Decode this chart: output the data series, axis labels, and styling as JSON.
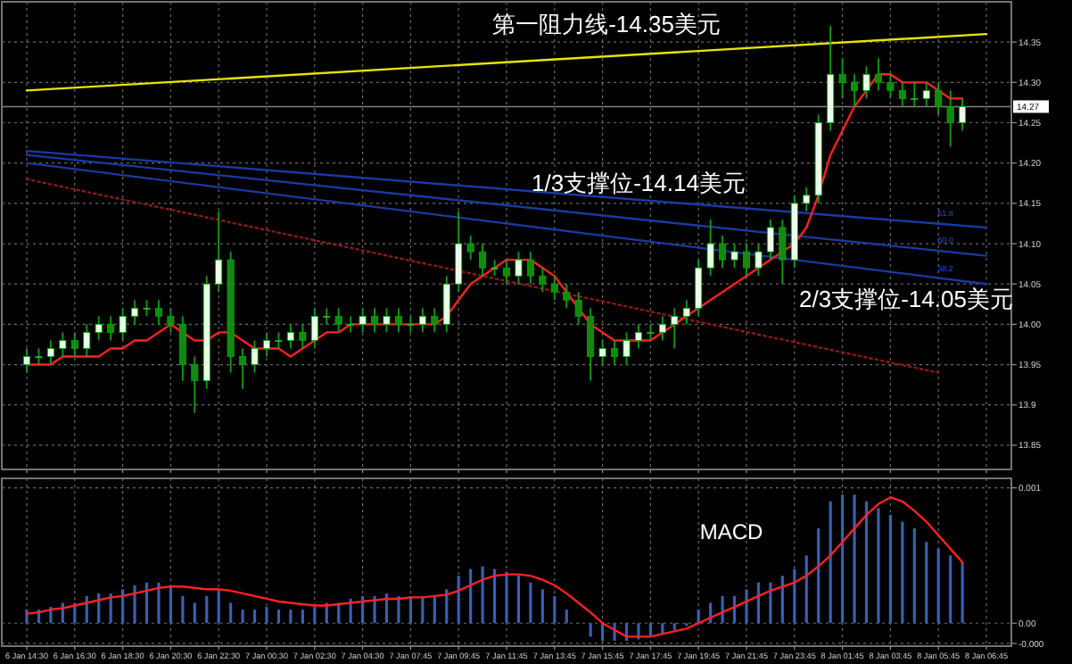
{
  "chart_data": [
    {
      "type": "candlestick",
      "tick_labels": "y",
      "grid": true,
      "ylim": [
        13.82,
        14.4
      ],
      "yticks": [
        13.85,
        13.9,
        13.95,
        {
          "value": 14.0,
          "label": "14.00"
        },
        14.05,
        {
          "value": 14.1,
          "label": "14.10"
        },
        14.15,
        {
          "value": 14.2,
          "label": "14.20"
        },
        14.25,
        {
          "value": 14.3,
          "label": "14.30"
        },
        14.35
      ],
      "categories": [
        "6 Jan 14:30",
        null,
        null,
        null,
        "6 Jan 16:30",
        null,
        null,
        null,
        "6 Jan 18:30",
        null,
        null,
        null,
        "6 Jan 20:30",
        null,
        null,
        null,
        "6 Jan 22:30",
        null,
        null,
        null,
        "7 Jan 00:30",
        null,
        null,
        null,
        "7 Jan 02:30",
        null,
        null,
        null,
        "7 Jan 04:30",
        null,
        null,
        null,
        "7 Jan 07:45",
        null,
        null,
        null,
        "7 Jan 09:45",
        null,
        null,
        null,
        "7 Jan 11:45",
        null,
        null,
        null,
        "7 Jan 13:45",
        null,
        null,
        null,
        "7 Jan 15:45",
        null,
        null,
        null,
        "7 Jan 17:45",
        null,
        null,
        null,
        "7 Jan 19:45",
        null,
        null,
        null,
        "7 Jan 21:45",
        null,
        null,
        null,
        "7 Jan 23:45",
        null,
        null,
        null,
        "8 Jan 01:45",
        null,
        null,
        null,
        "8 Jan 03:45",
        null,
        null,
        null,
        "8 Jan 05:45",
        null,
        null,
        null,
        "8 Jan 06:45"
      ],
      "ohlc": [
        [
          13.95,
          13.97,
          13.94,
          13.96
        ],
        [
          13.96,
          13.97,
          13.95,
          13.96
        ],
        [
          13.96,
          13.98,
          13.95,
          13.97
        ],
        [
          13.97,
          13.99,
          13.96,
          13.98
        ],
        [
          13.98,
          13.99,
          13.96,
          13.97
        ],
        [
          13.97,
          14.0,
          13.96,
          13.99
        ],
        [
          13.99,
          14.01,
          13.98,
          14.0
        ],
        [
          14.0,
          14.01,
          13.98,
          13.99
        ],
        [
          13.99,
          14.02,
          13.98,
          14.01
        ],
        [
          14.01,
          14.03,
          14.0,
          14.02
        ],
        [
          14.02,
          14.03,
          14.01,
          14.02
        ],
        [
          14.02,
          14.03,
          14.0,
          14.01
        ],
        [
          14.01,
          14.02,
          13.99,
          14.0
        ],
        [
          14.0,
          14.01,
          13.93,
          13.95
        ],
        [
          13.95,
          13.96,
          13.89,
          13.93
        ],
        [
          13.93,
          14.06,
          13.92,
          14.05
        ],
        [
          14.05,
          14.14,
          14.04,
          14.08
        ],
        [
          14.08,
          14.09,
          13.94,
          13.96
        ],
        [
          13.96,
          13.97,
          13.92,
          13.95
        ],
        [
          13.95,
          13.98,
          13.94,
          13.97
        ],
        [
          13.97,
          13.99,
          13.96,
          13.98
        ],
        [
          13.98,
          13.99,
          13.97,
          13.98
        ],
        [
          13.98,
          14.0,
          13.97,
          13.99
        ],
        [
          13.99,
          14.0,
          13.97,
          13.98
        ],
        [
          13.98,
          14.02,
          13.97,
          14.01
        ],
        [
          14.01,
          14.02,
          14.0,
          14.01
        ],
        [
          14.01,
          14.02,
          13.99,
          14.0
        ],
        [
          14.0,
          14.01,
          13.99,
          14.0
        ],
        [
          14.0,
          14.02,
          13.99,
          14.01
        ],
        [
          14.01,
          14.02,
          13.99,
          14.0
        ],
        [
          14.0,
          14.02,
          13.99,
          14.01
        ],
        [
          14.01,
          14.02,
          13.99,
          14.0
        ],
        [
          14.0,
          14.01,
          13.99,
          14.0
        ],
        [
          14.0,
          14.02,
          13.99,
          14.01
        ],
        [
          14.01,
          14.02,
          13.99,
          14.0
        ],
        [
          14.0,
          14.06,
          13.99,
          14.05
        ],
        [
          14.05,
          14.14,
          14.04,
          14.1
        ],
        [
          14.1,
          14.11,
          14.08,
          14.09
        ],
        [
          14.09,
          14.1,
          14.06,
          14.07
        ],
        [
          14.07,
          14.08,
          14.06,
          14.07
        ],
        [
          14.07,
          14.08,
          14.05,
          14.06
        ],
        [
          14.06,
          14.09,
          14.05,
          14.08
        ],
        [
          14.08,
          14.09,
          14.05,
          14.06
        ],
        [
          14.06,
          14.07,
          14.04,
          14.05
        ],
        [
          14.05,
          14.06,
          14.03,
          14.04
        ],
        [
          14.04,
          14.05,
          14.02,
          14.03
        ],
        [
          14.03,
          14.04,
          14.0,
          14.01
        ],
        [
          14.01,
          14.02,
          13.93,
          13.96
        ],
        [
          13.96,
          13.98,
          13.95,
          13.97
        ],
        [
          13.97,
          13.98,
          13.95,
          13.96
        ],
        [
          13.96,
          13.99,
          13.95,
          13.98
        ],
        [
          13.98,
          14.0,
          13.97,
          13.99
        ],
        [
          13.99,
          14.0,
          13.98,
          13.99
        ],
        [
          13.99,
          14.01,
          13.98,
          14.0
        ],
        [
          14.0,
          14.02,
          13.97,
          14.01
        ],
        [
          14.01,
          14.03,
          14.0,
          14.02
        ],
        [
          14.02,
          14.08,
          14.01,
          14.07
        ],
        [
          14.07,
          14.13,
          14.06,
          14.1
        ],
        [
          14.1,
          14.11,
          14.07,
          14.08
        ],
        [
          14.08,
          14.1,
          14.07,
          14.09
        ],
        [
          14.09,
          14.1,
          14.06,
          14.07
        ],
        [
          14.07,
          14.1,
          14.06,
          14.09
        ],
        [
          14.09,
          14.13,
          14.08,
          14.12
        ],
        [
          14.12,
          14.13,
          14.05,
          14.08
        ],
        [
          14.08,
          14.16,
          14.07,
          14.15
        ],
        [
          14.15,
          14.17,
          14.14,
          14.16
        ],
        [
          14.16,
          14.26,
          14.15,
          14.25
        ],
        [
          14.25,
          14.37,
          14.24,
          14.31
        ],
        [
          14.31,
          14.33,
          14.28,
          14.3
        ],
        [
          14.3,
          14.31,
          14.27,
          14.29
        ],
        [
          14.29,
          14.32,
          14.28,
          14.31
        ],
        [
          14.31,
          14.33,
          14.29,
          14.3
        ],
        [
          14.3,
          14.31,
          14.28,
          14.29
        ],
        [
          14.29,
          14.3,
          14.27,
          14.28
        ],
        [
          14.28,
          14.3,
          14.27,
          14.28
        ],
        [
          14.28,
          14.3,
          14.27,
          14.29
        ],
        [
          14.29,
          14.3,
          14.26,
          14.27
        ],
        [
          14.27,
          14.29,
          14.22,
          14.25
        ],
        [
          14.25,
          14.28,
          14.24,
          14.27
        ],
        null,
        null
      ],
      "series": [
        {
          "type": "line",
          "color": "#e6e600",
          "x": [
            "6 Jan 14:30",
            "8 Jan 06:45"
          ],
          "values": [
            14.29,
            14.36
          ]
        },
        {
          "type": "line",
          "color": "#1a3aa0",
          "x": [
            "6 Jan 14:30",
            "8 Jan 06:45"
          ],
          "values": [
            14.215,
            14.12
          ]
        },
        {
          "type": "line",
          "color": "#1a3aa0",
          "x": [
            "6 Jan 14:30",
            "8 Jan 06:45"
          ],
          "values": [
            14.21,
            14.085
          ]
        },
        {
          "type": "line",
          "color": "#1a3aa0",
          "x": [
            "6 Jan 14:30",
            "8 Jan 06:45"
          ],
          "values": [
            14.2,
            14.05
          ]
        },
        {
          "type": "line",
          "color": "#8a1a1a",
          "line_style": "dotted",
          "x": [
            "6 Jan 14:30",
            "8 Jan 05:45"
          ],
          "values": [
            14.18,
            13.94
          ]
        },
        {
          "type": "line",
          "color": "#ff2222",
          "values": [
            13.95,
            13.95,
            13.95,
            13.96,
            13.96,
            13.96,
            13.96,
            13.97,
            13.97,
            13.98,
            13.98,
            13.99,
            14.0,
            13.99,
            13.98,
            13.98,
            13.99,
            13.99,
            13.98,
            13.97,
            13.97,
            13.97,
            13.96,
            13.97,
            13.98,
            13.99,
            13.99,
            14.0,
            14.0,
            14.0,
            14.0,
            14.0,
            14.0,
            14.0,
            14.0,
            14.01,
            14.03,
            14.05,
            14.06,
            14.07,
            14.08,
            14.08,
            14.08,
            14.07,
            14.06,
            14.04,
            14.02,
            14.0,
            13.99,
            13.98,
            13.98,
            13.98,
            13.98,
            13.99,
            14.0,
            14.01,
            14.02,
            14.03,
            14.04,
            14.05,
            14.06,
            14.07,
            14.08,
            14.09,
            14.1,
            14.12,
            14.16,
            14.21,
            14.24,
            14.27,
            14.29,
            14.31,
            14.31,
            14.3,
            14.3,
            14.3,
            14.29,
            14.28,
            14.28,
            null,
            null
          ]
        }
      ],
      "ref_lines": [
        {
          "axis": "y",
          "value": 14.27,
          "label": "14.27",
          "color": "#808080"
        }
      ],
      "annotations": [
        "第一阻力线-14.35美元",
        "1/3支撑位-14.14美元",
        "2/3支撑位-14.05美元",
        "61.8",
        "50.0",
        "38.2"
      ]
    },
    {
      "type": "bar",
      "grid": true,
      "ylim": [
        -0.00017,
        0.00107
      ],
      "yticks": [
        {
          "value": 0.001,
          "label": "0.001"
        },
        {
          "value": 0,
          "label": "0.00"
        },
        {
          "value": -0.00015,
          "label": "-0.000"
        }
      ],
      "categories": [
        "6 Jan 14:30",
        null,
        null,
        null,
        "6 Jan 16:30",
        null,
        null,
        null,
        "6 Jan 18:30",
        null,
        null,
        null,
        "6 Jan 20:30",
        null,
        null,
        null,
        "6 Jan 22:30",
        null,
        null,
        null,
        "7 Jan 00:30",
        null,
        null,
        null,
        "7 Jan 02:30",
        null,
        null,
        null,
        "7 Jan 04:30",
        null,
        null,
        null,
        "7 Jan 07:45",
        null,
        null,
        null,
        "7 Jan 09:45",
        null,
        null,
        null,
        "7 Jan 11:45",
        null,
        null,
        null,
        "7 Jan 13:45",
        null,
        null,
        null,
        "7 Jan 15:45",
        null,
        null,
        null,
        "7 Jan 17:45",
        null,
        null,
        null,
        "7 Jan 19:45",
        null,
        null,
        null,
        "7 Jan 21:45",
        null,
        null,
        null,
        "7 Jan 23:45",
        null,
        null,
        null,
        "8 Jan 01:45",
        null,
        null,
        null,
        "8 Jan 03:45",
        null,
        null,
        null,
        "8 Jan 05:45",
        null,
        null,
        null,
        "8 Jan 06:45"
      ],
      "series": [
        {
          "type": "bar",
          "color": "#3a5fb0",
          "values": [
            0.0001,
            0.0001,
            0.00012,
            0.00015,
            0.00015,
            0.0002,
            0.00022,
            0.00022,
            0.00025,
            0.00028,
            0.0003,
            0.0003,
            0.00028,
            0.0002,
            0.00015,
            0.0002,
            0.00025,
            0.00015,
            0.0001,
            0.0001,
            0.00012,
            0.0001,
            0.0001,
            0.0001,
            0.00012,
            0.00015,
            0.00015,
            0.00018,
            0.0002,
            0.0002,
            0.00022,
            0.0002,
            0.0002,
            0.0002,
            0.0002,
            0.00025,
            0.00035,
            0.0004,
            0.00042,
            0.0004,
            0.00038,
            0.00035,
            0.0003,
            0.00025,
            0.0002,
            0.0001,
            0.0,
            -0.0001,
            -0.00013,
            -0.00013,
            -0.00013,
            -0.00012,
            -0.0001,
            -8e-05,
            -5e-05,
            -2e-05,
            0.0001,
            0.00015,
            0.0002,
            0.0002,
            0.00025,
            0.0003,
            0.0003,
            0.00035,
            0.0004,
            0.0005,
            0.0007,
            0.0009,
            0.00095,
            0.00095,
            0.0009,
            0.00085,
            0.0008,
            0.00075,
            0.0007,
            0.0006,
            0.00055,
            0.0005,
            0.00045,
            null,
            null
          ]
        },
        {
          "type": "line",
          "color": "#ff2222",
          "values": [
            7e-05,
            8e-05,
            0.0001,
            0.00011,
            0.00013,
            0.00015,
            0.00017,
            0.00019,
            0.0002,
            0.00022,
            0.00024,
            0.00026,
            0.00027,
            0.00027,
            0.00026,
            0.00025,
            0.00025,
            0.00024,
            0.00022,
            0.0002,
            0.00018,
            0.00016,
            0.00015,
            0.00014,
            0.00013,
            0.00013,
            0.00014,
            0.00015,
            0.00016,
            0.00017,
            0.00018,
            0.00018,
            0.00019,
            0.00019,
            0.0002,
            0.00021,
            0.00024,
            0.00028,
            0.00032,
            0.00035,
            0.00036,
            0.00036,
            0.00035,
            0.00032,
            0.00028,
            0.00022,
            0.00015,
            8e-05,
            0.0,
            -5e-05,
            -0.0001,
            -0.0001,
            -0.0001,
            -8e-05,
            -6e-05,
            -4e-05,
            0.0,
            4e-05,
            8e-05,
            0.00012,
            0.00016,
            0.0002,
            0.00024,
            0.00027,
            0.0003,
            0.00035,
            0.00042,
            0.0005,
            0.0006,
            0.0007,
            0.0008,
            0.00088,
            0.00093,
            0.0009,
            0.00083,
            0.00075,
            0.00065,
            0.00055,
            0.00045,
            null,
            null
          ]
        }
      ],
      "annotations": [
        "MACD"
      ]
    }
  ]
}
